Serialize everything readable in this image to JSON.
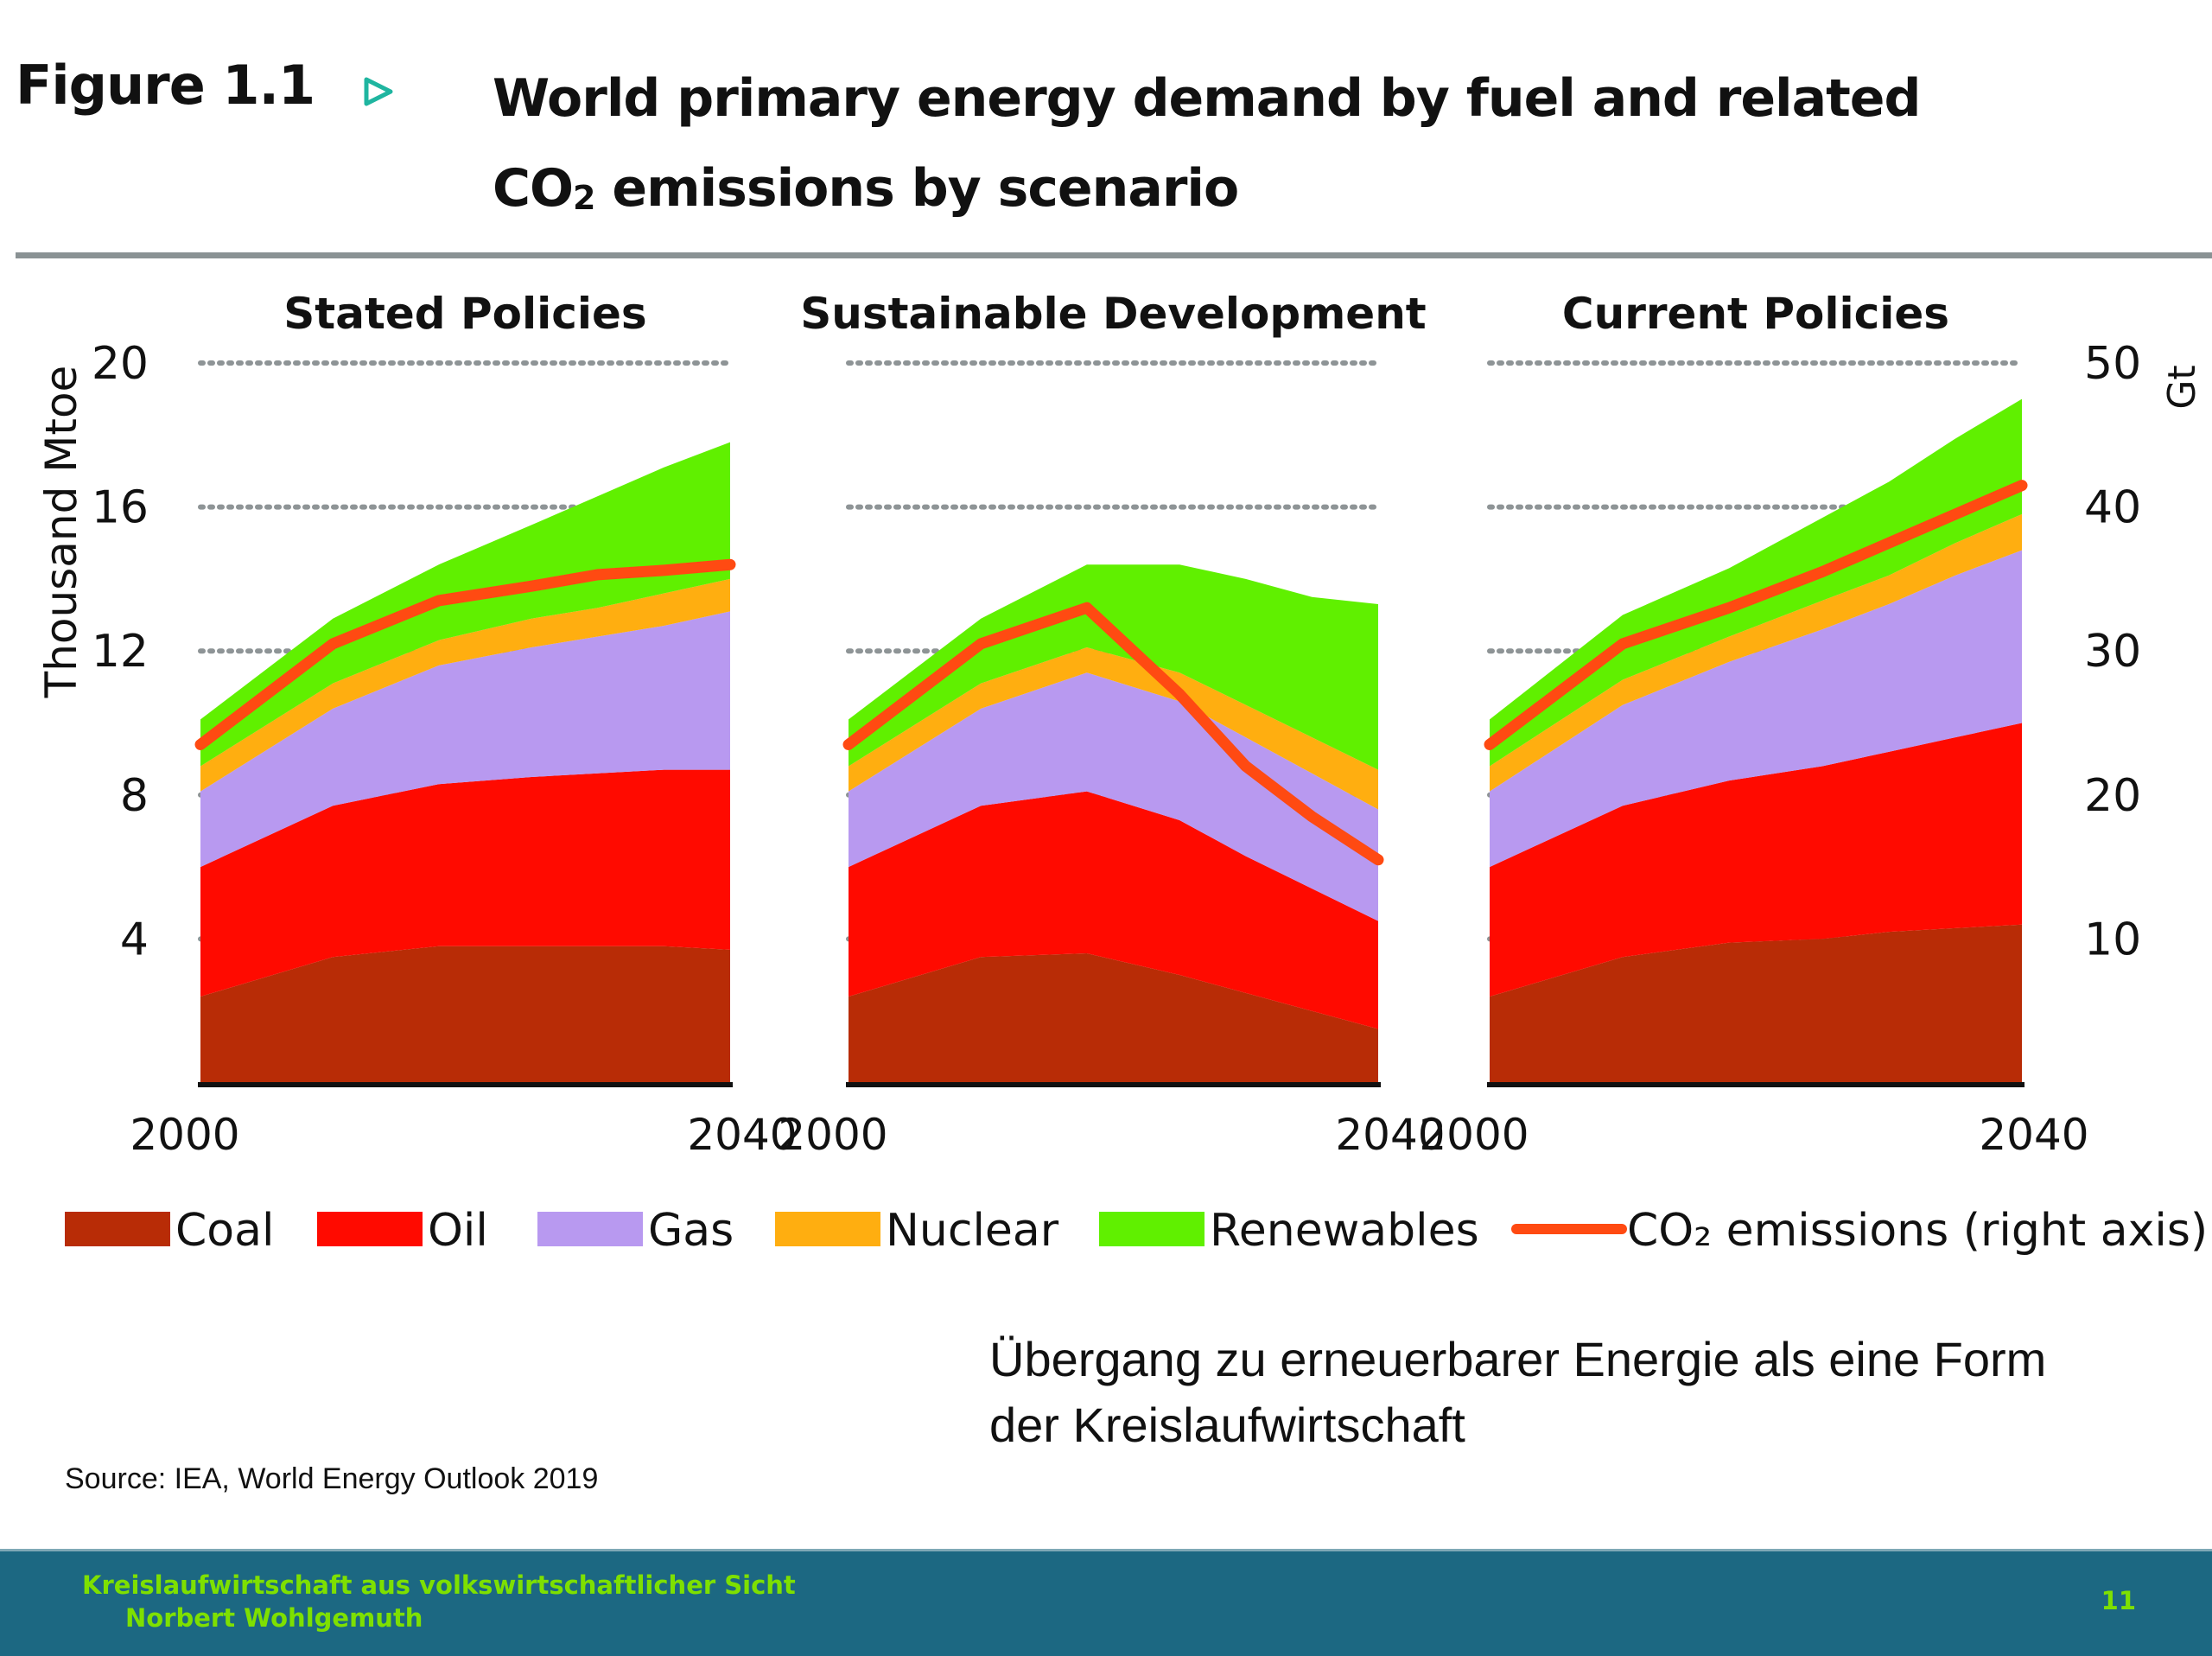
{
  "figure": {
    "label": "Figure 1.1",
    "title_line1": "World primary energy demand by fuel and related",
    "title_line2_pre": "CO",
    "title_line2_sub": "2",
    "title_line2_post": " emissions by scenario",
    "arrow_icon": "triangle-right-outline",
    "arrow_color": "#1fb5a0"
  },
  "chart_data": {
    "type": "area",
    "title": "World primary energy demand by fuel and related CO2 emissions by scenario",
    "ylabel": "Thousand Mtoe",
    "ylabel_right": "Gt",
    "ylim": [
      0,
      20
    ],
    "ylim_right": [
      0,
      50
    ],
    "yticks": [
      4,
      8,
      12,
      16,
      20
    ],
    "yticks_right": [
      10,
      20,
      30,
      40,
      50
    ],
    "grid": "dotted horizontal",
    "stacked": true,
    "x": [
      2000,
      2010,
      2018,
      2025,
      2030,
      2035,
      2040
    ],
    "xtick_labels": [
      "2000",
      "2040"
    ],
    "legend_position": "bottom",
    "colors": {
      "Coal": "#b82c06",
      "Oil": "#ff0a00",
      "Gas": "#b899f0",
      "Nuclear": "#ffae10",
      "Renewables": "#60f000",
      "CO2": "#ff4a12"
    },
    "panels": [
      {
        "title": "Stated Policies",
        "series": [
          {
            "name": "Coal",
            "values": [
              2.4,
              3.5,
              3.8,
              3.8,
              3.8,
              3.8,
              3.7
            ]
          },
          {
            "name": "Oil",
            "values": [
              3.6,
              4.2,
              4.5,
              4.7,
              4.8,
              4.9,
              5.0
            ]
          },
          {
            "name": "Gas",
            "values": [
              2.1,
              2.7,
              3.3,
              3.6,
              3.8,
              4.0,
              4.4
            ]
          },
          {
            "name": "Nuclear",
            "values": [
              0.7,
              0.7,
              0.7,
              0.8,
              0.8,
              0.9,
              0.9
            ]
          },
          {
            "name": "Renewables",
            "values": [
              1.3,
              1.8,
              2.1,
              2.6,
              3.1,
              3.5,
              3.8
            ]
          }
        ],
        "co2": [
          23.5,
          30.5,
          33.5,
          34.5,
          35.3,
          35.6,
          36.0
        ]
      },
      {
        "title": "Sustainable Development",
        "series": [
          {
            "name": "Coal",
            "values": [
              2.4,
              3.5,
              3.6,
              3.0,
              2.5,
              2.0,
              1.5
            ]
          },
          {
            "name": "Oil",
            "values": [
              3.6,
              4.2,
              4.5,
              4.3,
              3.8,
              3.4,
              3.0
            ]
          },
          {
            "name": "Gas",
            "values": [
              2.1,
              2.7,
              3.3,
              3.3,
              3.3,
              3.2,
              3.1
            ]
          },
          {
            "name": "Nuclear",
            "values": [
              0.7,
              0.7,
              0.7,
              0.8,
              0.9,
              1.0,
              1.1
            ]
          },
          {
            "name": "Renewables",
            "values": [
              1.3,
              1.8,
              2.3,
              3.0,
              3.5,
              3.9,
              4.6
            ]
          }
        ],
        "co2": [
          23.5,
          30.5,
          33.0,
          27.0,
          22.0,
          18.5,
          15.5
        ]
      },
      {
        "title": "Current Policies",
        "series": [
          {
            "name": "Coal",
            "values": [
              2.4,
              3.5,
              3.9,
              4.0,
              4.2,
              4.3,
              4.4
            ]
          },
          {
            "name": "Oil",
            "values": [
              3.6,
              4.2,
              4.5,
              4.8,
              5.0,
              5.3,
              5.6
            ]
          },
          {
            "name": "Gas",
            "values": [
              2.1,
              2.8,
              3.3,
              3.8,
              4.1,
              4.5,
              4.8
            ]
          },
          {
            "name": "Nuclear",
            "values": [
              0.7,
              0.7,
              0.7,
              0.8,
              0.8,
              0.9,
              1.0
            ]
          },
          {
            "name": "Renewables",
            "values": [
              1.3,
              1.8,
              1.9,
              2.3,
              2.6,
              2.9,
              3.2
            ]
          }
        ],
        "co2": [
          23.5,
          30.5,
          33.0,
          35.5,
          37.5,
          39.5,
          41.5
        ]
      }
    ]
  },
  "legend": [
    {
      "label": "Coal",
      "kind": "swatch"
    },
    {
      "label": "Oil",
      "kind": "swatch"
    },
    {
      "label": "Gas",
      "kind": "swatch"
    },
    {
      "label": "Nuclear",
      "kind": "swatch"
    },
    {
      "label": "Renewables",
      "kind": "swatch"
    },
    {
      "label": "CO₂ emissions (right axis)",
      "kind": "line"
    }
  ],
  "caption": {
    "line1": "Übergang zu erneuerbarer Energie als eine Form",
    "line2": "der Kreislaufwirtschaft"
  },
  "source": "Source: IEA, World Energy Outlook 2019",
  "footer": {
    "line1": "Kreislaufwirtschaft aus volkswirtschaftlicher Sicht",
    "line2": "Norbert Wohlgemuth",
    "page": "11",
    "bg_color": "#1c6882",
    "text_color": "#7ee000"
  }
}
